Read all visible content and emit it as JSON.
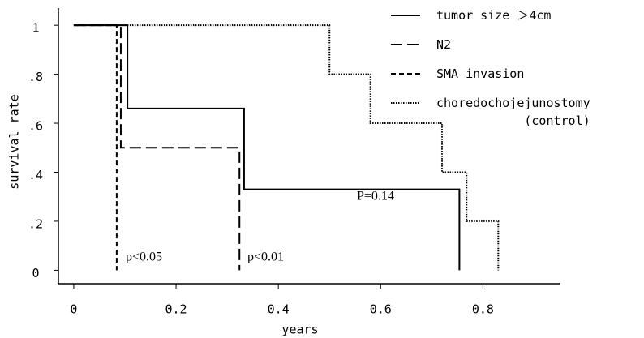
{
  "chart_data": {
    "type": "line",
    "xlabel": "years",
    "ylabel": "survival rate",
    "xlim": [
      -0.03,
      0.95
    ],
    "ylim": [
      -0.055,
      1.07
    ],
    "xticks": [
      0,
      {
        "value": 0.2,
        "label": "0.2"
      },
      {
        "value": 0.4,
        "label": "0.4"
      },
      {
        "value": 0.6,
        "label": "0.6"
      },
      {
        "value": 0.8,
        "label": "0.8"
      }
    ],
    "yticks": [
      0,
      {
        "value": 0.2,
        "label": ".2"
      },
      {
        "value": 0.4,
        "label": ".4"
      },
      {
        "value": 0.6,
        "label": ".6"
      },
      {
        "value": 0.8,
        "label": ".8"
      },
      1
    ],
    "legend": "upper right",
    "series": [
      {
        "name": "tumor size ＞4cm",
        "color": "#000000",
        "dash": "none",
        "x": [
          0,
          0.105,
          0.105,
          0.333,
          0.333,
          0.754,
          0.754
        ],
        "values": [
          1,
          1,
          0.66,
          0.66,
          0.33,
          0.33,
          0
        ]
      },
      {
        "name": "N2",
        "color": "#000000",
        "dash": "14,6",
        "x": [
          0,
          0.092,
          0.092,
          0.324,
          0.324
        ],
        "values": [
          1,
          1,
          0.5,
          0.5,
          0
        ]
      },
      {
        "name": "SMA invasion",
        "color": "#000000",
        "dash": "6,4",
        "x": [
          0,
          0.084,
          0.084
        ],
        "values": [
          1,
          1,
          0
        ]
      },
      {
        "name": "choredochojejunostomy\n(control)",
        "color": "#000000",
        "dash": "1.5,1.5",
        "x": [
          0,
          0.5,
          0.5,
          0.58,
          0.58,
          0.72,
          0.72,
          0.768,
          0.768,
          0.83,
          0.83
        ],
        "values": [
          1,
          1,
          0.8,
          0.8,
          0.6,
          0.6,
          0.4,
          0.4,
          0.2,
          0.2,
          0
        ]
      }
    ],
    "annotations": [
      "p<0.05",
      "p<0.01",
      "P=0.14"
    ]
  }
}
